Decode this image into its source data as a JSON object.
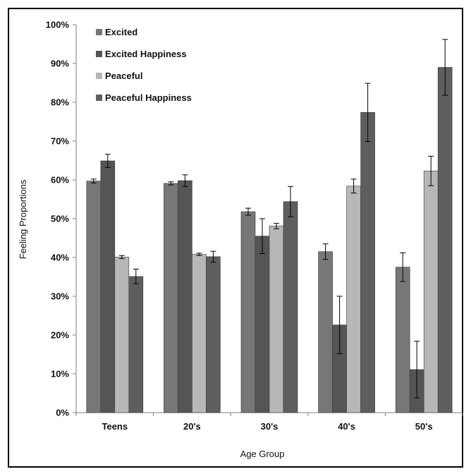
{
  "chart_data": {
    "type": "bar",
    "title": "",
    "xlabel": "Age Group",
    "ylabel": "Feeling Proportions",
    "categories": [
      "Teens",
      "20's",
      "30's",
      "40's",
      "50's"
    ],
    "ylim": [
      0,
      100
    ],
    "yticks": [
      "0%",
      "10%",
      "20%",
      "30%",
      "40%",
      "50%",
      "60%",
      "70%",
      "80%",
      "90%",
      "100%"
    ],
    "grid": false,
    "legend_position": "top-left",
    "series": [
      {
        "name": "Excited",
        "color": "#777777",
        "values": [
          59.7,
          59.1,
          51.8,
          41.5,
          37.5
        ],
        "errors": [
          0.5,
          0.4,
          0.9,
          2.0,
          3.7
        ]
      },
      {
        "name": "Excited Happiness",
        "color": "#555555",
        "values": [
          64.9,
          59.8,
          45.5,
          22.6,
          11.1
        ],
        "errors": [
          1.7,
          1.5,
          4.5,
          7.4,
          7.3
        ]
      },
      {
        "name": "Peaceful",
        "color": "#b7b7b7",
        "values": [
          40.1,
          40.8,
          48.1,
          58.4,
          62.3
        ],
        "errors": [
          0.4,
          0.3,
          0.7,
          1.8,
          3.8
        ]
      },
      {
        "name": "Peaceful Happiness",
        "color": "#5e5e5e",
        "values": [
          35.1,
          40.2,
          54.4,
          77.4,
          89.0
        ],
        "errors": [
          1.9,
          1.4,
          3.9,
          7.5,
          7.2
        ]
      }
    ]
  }
}
